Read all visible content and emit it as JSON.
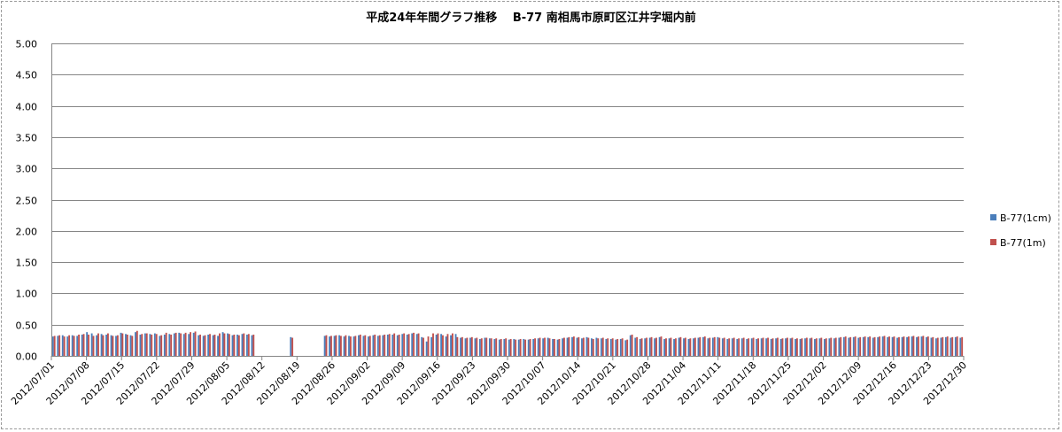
{
  "chart_data": {
    "type": "bar",
    "title": "平成24年年間グラフ推移　 B-77 南相馬市原町区江井字堀内前",
    "ylim": [
      0,
      5
    ],
    "yticks": [
      "5.00",
      "4.50",
      "4.00",
      "3.50",
      "3.00",
      "2.50",
      "2.00",
      "1.50",
      "1.00",
      "0.50",
      "0.00"
    ],
    "xticks": [
      "2012/07/01",
      "2012/07/08",
      "2012/07/15",
      "2012/07/22",
      "2012/07/29",
      "2012/08/05",
      "2012/08/12",
      "2012/08/19",
      "2012/08/26",
      "2012/09/02",
      "2012/09/09",
      "2012/09/16",
      "2012/09/23",
      "2012/09/30",
      "2012/10/07",
      "2012/10/14",
      "2012/10/21",
      "2012/10/28",
      "2012/11/04",
      "2012/11/11",
      "2012/11/18",
      "2012/11/25",
      "2012/12/02",
      "2012/12/09",
      "2012/12/16",
      "2012/12/23",
      "2012/12/30"
    ],
    "grid": true,
    "legend_position": "right",
    "series": [
      {
        "name": "B-77(1cm)",
        "color": "#4a7ebb",
        "values": [
          0.31,
          0.32,
          0.33,
          0.31,
          0.33,
          0.32,
          0.34,
          0.38,
          0.36,
          0.33,
          0.35,
          0.34,
          0.33,
          0.32,
          0.37,
          0.35,
          0.33,
          0.38,
          0.34,
          0.36,
          0.35,
          0.36,
          0.32,
          0.34,
          0.35,
          0.36,
          0.37,
          0.35,
          0.35,
          0.37,
          0.33,
          0.32,
          0.34,
          0.33,
          0.32,
          0.38,
          0.36,
          0.33,
          0.34,
          0.35,
          0.34,
          0.33,
          null,
          null,
          null,
          null,
          null,
          null,
          null,
          0.3,
          null,
          null,
          null,
          null,
          null,
          null,
          0.32,
          0.31,
          0.32,
          0.33,
          0.31,
          0.32,
          0.31,
          0.33,
          0.32,
          0.31,
          0.33,
          0.32,
          0.33,
          0.34,
          0.34,
          0.33,
          0.35,
          0.34,
          0.36,
          0.35,
          0.3,
          0.23,
          0.3,
          0.34,
          0.35,
          0.31,
          0.33,
          0.35,
          0.29,
          0.28,
          0.29,
          0.28,
          0.27,
          0.29,
          0.28,
          0.27,
          0.26,
          0.27,
          0.26,
          0.27,
          0.26,
          0.27,
          0.26,
          0.27,
          0.28,
          0.28,
          0.29,
          0.27,
          0.26,
          0.28,
          0.29,
          0.3,
          0.29,
          0.28,
          0.3,
          0.28,
          0.29,
          0.28,
          0.27,
          0.27,
          0.26,
          0.27,
          0.25,
          0.33,
          0.29,
          0.27,
          0.28,
          0.29,
          0.28,
          0.3,
          0.27,
          0.28,
          0.27,
          0.29,
          0.28,
          0.27,
          0.28,
          0.29,
          0.3,
          0.28,
          0.29,
          0.3,
          0.28,
          0.27,
          0.28,
          0.27,
          0.28,
          0.27,
          0.28,
          0.27,
          0.28,
          0.28,
          0.27,
          0.28,
          0.27,
          0.28,
          0.28,
          0.27,
          0.27,
          0.28,
          0.28,
          0.27,
          0.28,
          0.27,
          0.28,
          0.28,
          0.29,
          0.3,
          0.29,
          0.3,
          0.29,
          0.3,
          0.3,
          0.29,
          0.3,
          0.31,
          0.3,
          0.3,
          0.29,
          0.3,
          0.3,
          0.31,
          0.3,
          0.31,
          0.3,
          0.29,
          0.28,
          0.29,
          0.3,
          0.29,
          0.3,
          0.29
        ]
      },
      {
        "name": "B-77(1m)",
        "color": "#c0504d",
        "values": [
          0.32,
          0.33,
          0.31,
          0.33,
          0.32,
          0.34,
          0.35,
          0.34,
          0.32,
          0.36,
          0.33,
          0.36,
          0.32,
          0.33,
          0.36,
          0.34,
          0.32,
          0.4,
          0.35,
          0.36,
          0.34,
          0.35,
          0.33,
          0.37,
          0.34,
          0.37,
          0.36,
          0.37,
          0.38,
          0.39,
          0.34,
          0.33,
          0.35,
          0.34,
          0.36,
          0.36,
          0.35,
          0.34,
          0.33,
          0.36,
          0.35,
          0.34,
          null,
          null,
          null,
          null,
          null,
          null,
          null,
          0.29,
          null,
          null,
          null,
          null,
          null,
          null,
          0.33,
          0.32,
          0.33,
          0.32,
          0.33,
          0.31,
          0.32,
          0.34,
          0.33,
          0.32,
          0.34,
          0.33,
          0.34,
          0.35,
          0.36,
          0.34,
          0.36,
          0.35,
          0.37,
          0.36,
          0.29,
          0.31,
          0.36,
          0.36,
          0.33,
          0.35,
          0.36,
          0.3,
          0.3,
          0.29,
          0.3,
          0.29,
          0.28,
          0.29,
          0.28,
          0.28,
          0.27,
          0.28,
          0.27,
          0.26,
          0.27,
          0.26,
          0.27,
          0.28,
          0.29,
          0.29,
          0.28,
          0.27,
          0.27,
          0.29,
          0.3,
          0.31,
          0.3,
          0.29,
          0.29,
          0.27,
          0.28,
          0.29,
          0.28,
          0.28,
          0.27,
          0.28,
          0.26,
          0.34,
          0.3,
          0.28,
          0.29,
          0.3,
          0.29,
          0.31,
          0.28,
          0.29,
          0.28,
          0.3,
          0.29,
          0.28,
          0.29,
          0.3,
          0.31,
          0.29,
          0.3,
          0.29,
          0.29,
          0.28,
          0.29,
          0.28,
          0.29,
          0.28,
          0.29,
          0.28,
          0.29,
          0.29,
          0.28,
          0.29,
          0.28,
          0.29,
          0.29,
          0.28,
          0.28,
          0.29,
          0.29,
          0.28,
          0.29,
          0.28,
          0.29,
          0.29,
          0.3,
          0.31,
          0.3,
          0.31,
          0.3,
          0.31,
          0.31,
          0.3,
          0.31,
          0.32,
          0.31,
          0.31,
          0.3,
          0.31,
          0.31,
          0.32,
          0.31,
          0.32,
          0.31,
          0.3,
          0.29,
          0.3,
          0.31,
          0.3,
          0.31,
          0.3
        ]
      }
    ]
  }
}
